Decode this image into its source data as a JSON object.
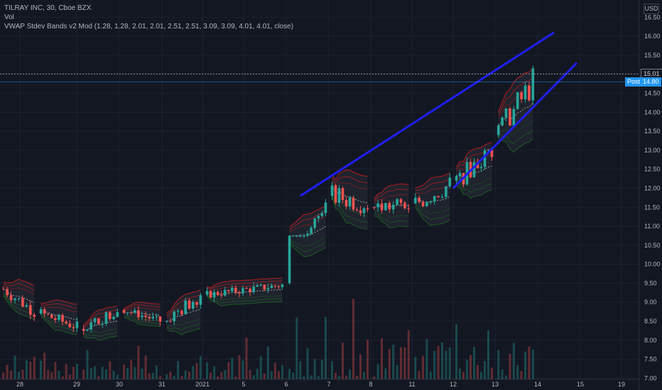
{
  "legend": {
    "symbol": "TILRAY INC, 30, Cboe BZX",
    "volume": "Vol",
    "indicator": "VWAP Stdev Bands v2 Mod (1.28, 1.28, 2.01, 2.01, 2.51, 2.51, 3.09, 3.09, 4.01, 4.01, close)"
  },
  "currency": "USD",
  "price_labels": {
    "last": "15.01",
    "post_tag": "Post",
    "post_price": "14.80"
  },
  "colors": {
    "background": "#131722",
    "up": "#26a69a",
    "down": "#ef5350",
    "trendline": "#1f1ff2",
    "upper_band": "#b71c1c",
    "lower_band": "#1b5e20",
    "vwap": "#9e9e9e"
  },
  "chart_data": {
    "type": "candlestick",
    "y_axis": {
      "ticks": [
        "16.50",
        "16.00",
        "15.50",
        "15.00",
        "14.50",
        "14.00",
        "13.50",
        "13.00",
        "12.50",
        "12.00",
        "11.50",
        "11.00",
        "10.50",
        "10.00",
        "9.50",
        "9.00",
        "8.50",
        "8.00",
        "7.50",
        "7.00"
      ],
      "range": [
        6.95,
        16.75
      ]
    },
    "x_axis": {
      "ticks": [
        "28",
        "29",
        "30",
        "31",
        "2021",
        "5",
        "6",
        "7",
        "8",
        "11",
        "12",
        "13",
        "14",
        "15",
        "19"
      ]
    },
    "sessions": [
      {
        "label": "28",
        "open": 9.35,
        "close": 8.75,
        "high": 9.55,
        "low": 8.55
      },
      {
        "label": "29",
        "open": 8.7,
        "close": 8.35,
        "high": 8.95,
        "low": 8.1
      },
      {
        "label": "30",
        "open": 8.3,
        "close": 8.8,
        "high": 9.05,
        "low": 8.2
      },
      {
        "label": "31",
        "open": 8.8,
        "close": 8.5,
        "high": 8.9,
        "low": 8.35
      },
      {
        "label": "2021",
        "open": 8.5,
        "close": 9.2,
        "high": 9.6,
        "low": 8.45
      },
      {
        "label": "5",
        "open": 9.2,
        "close": 9.45,
        "high": 9.6,
        "low": 9.0
      },
      {
        "label": "6",
        "open": 9.5,
        "close": 11.75,
        "high": 12.0,
        "low": 10.7
      },
      {
        "label": "7",
        "open": 11.8,
        "close": 11.6,
        "high": 12.7,
        "low": 11.0
      },
      {
        "label": "8",
        "open": 11.5,
        "close": 11.55,
        "high": 12.0,
        "low": 10.7
      },
      {
        "label": "11",
        "open": 11.6,
        "close": 12.1,
        "high": 12.5,
        "low": 11.0
      },
      {
        "label": "12",
        "open": 12.2,
        "close": 13.0,
        "high": 13.5,
        "low": 12.0
      },
      {
        "label": "13",
        "open": 13.4,
        "close": 14.8,
        "high": 15.95,
        "low": 13.6
      }
    ],
    "annotations": [
      {
        "type": "trendline",
        "points": [
          [
            "6",
            11.8
          ],
          [
            "14",
            16.1
          ]
        ]
      },
      {
        "type": "trendline",
        "points": [
          [
            "12",
            12.0
          ],
          [
            "14",
            15.3
          ]
        ]
      }
    ]
  }
}
